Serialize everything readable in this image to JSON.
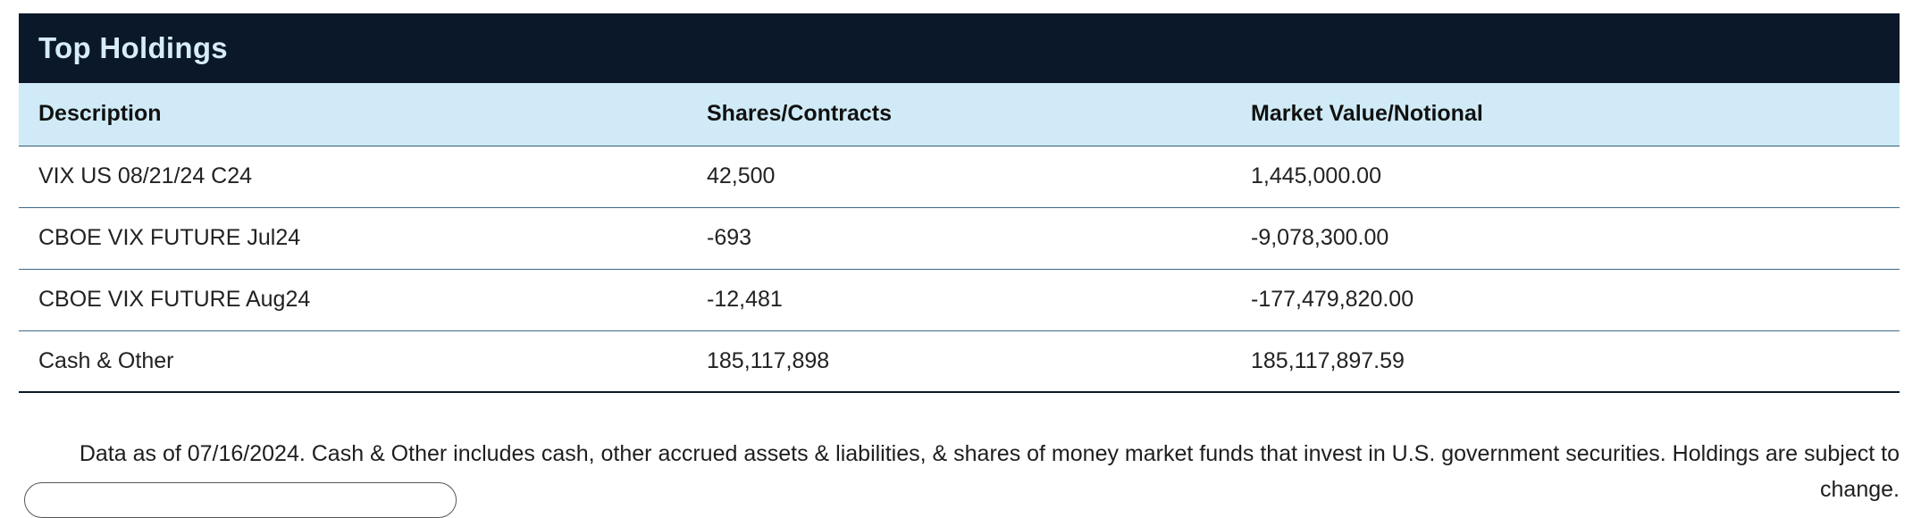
{
  "holdings": {
    "title": "Top Holdings",
    "columns": {
      "description": "Description",
      "shares": "Shares/Contracts",
      "market_value": "Market Value/Notional"
    },
    "rows": [
      {
        "description": "VIX US 08/21/24 C24",
        "shares": "42,500",
        "market_value": "1,445,000.00"
      },
      {
        "description": "CBOE VIX FUTURE Jul24",
        "shares": "-693",
        "market_value": "-9,078,300.00"
      },
      {
        "description": "CBOE VIX FUTURE Aug24",
        "shares": "-12,481",
        "market_value": "-177,479,820.00"
      },
      {
        "description": "Cash & Other",
        "shares": "185,117,898",
        "market_value": "185,117,897.59"
      }
    ],
    "footnote": "Data as of 07/16/2024. Cash & Other includes cash, other accrued assets & liabilities, & shares of money market funds that invest in U.S. government securities. Holdings are subject to change."
  }
}
